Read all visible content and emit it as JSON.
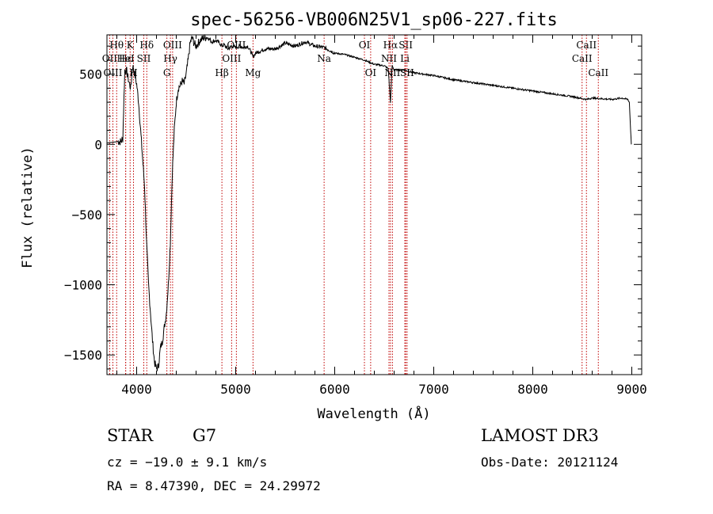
{
  "chart_data": {
    "type": "line",
    "title": "spec-56256-VB006N25V1_sp06-227.fits",
    "xlabel": "Wavelength (Å)",
    "ylabel": "Flux (relative)",
    "xlim": [
      3700,
      9100
    ],
    "ylim": [
      -1640,
      780
    ],
    "xticks": [
      4000,
      5000,
      6000,
      7000,
      8000,
      9000
    ],
    "xtick_labels": [
      "4000",
      "5000",
      "6000",
      "7000",
      "8000",
      "9000"
    ],
    "yticks": [
      -1500,
      -1000,
      -500,
      0,
      500
    ],
    "ytick_labels": [
      "−1500",
      "−1000",
      "−500",
      "0",
      "500"
    ],
    "series": [
      {
        "name": "flux",
        "color": "#000000",
        "x": [
          3700,
          3760,
          3810,
          3840,
          3860,
          3880,
          3900,
          3920,
          3940,
          3960,
          3980,
          4000,
          4020,
          4040,
          4060,
          4080,
          4100,
          4120,
          4140,
          4160,
          4180,
          4200,
          4220,
          4240,
          4260,
          4280,
          4300,
          4320,
          4340,
          4360,
          4380,
          4400,
          4420,
          4440,
          4460,
          4480,
          4500,
          4520,
          4540,
          4560,
          4580,
          4600,
          4640,
          4680,
          4720,
          4760,
          4800,
          4840,
          4861,
          4880,
          4920,
          4960,
          5000,
          5040,
          5080,
          5120,
          5160,
          5175,
          5200,
          5300,
          5400,
          5500,
          5600,
          5700,
          5800,
          5890,
          5950,
          6000,
          6100,
          6200,
          6300,
          6400,
          6500,
          6540,
          6563,
          6580,
          6600,
          6700,
          6800,
          7000,
          7200,
          7400,
          7600,
          7800,
          8000,
          8200,
          8400,
          8542,
          8600,
          8800,
          8900,
          8960,
          8975,
          8985,
          8995
        ],
        "y": [
          10,
          15,
          20,
          20,
          40,
          530,
          520,
          450,
          400,
          560,
          500,
          430,
          300,
          100,
          -100,
          -300,
          -700,
          -1000,
          -1200,
          -1400,
          -1550,
          -1600,
          -1580,
          -1450,
          -1400,
          -1300,
          -1200,
          -1000,
          -700,
          -200,
          100,
          300,
          400,
          420,
          450,
          430,
          500,
          600,
          720,
          760,
          720,
          700,
          740,
          760,
          760,
          730,
          740,
          720,
          700,
          710,
          680,
          700,
          690,
          700,
          690,
          700,
          650,
          620,
          650,
          680,
          680,
          720,
          700,
          730,
          700,
          690,
          670,
          650,
          640,
          620,
          600,
          570,
          560,
          540,
          300,
          560,
          530,
          530,
          510,
          490,
          460,
          440,
          420,
          400,
          380,
          360,
          340,
          320,
          330,
          320,
          330,
          320,
          300,
          150,
          0
        ]
      }
    ],
    "spectral_lines": [
      {
        "name": "Hθ",
        "wave": 3798,
        "row": 1
      },
      {
        "name": "OII",
        "wave": 3727,
        "row": 2
      },
      {
        "name": "OIII",
        "wave": 3760,
        "row": 3
      },
      {
        "name": "Hε",
        "wave": 3889,
        "row": 2
      },
      {
        "name": "K",
        "wave": 3934,
        "row": 1
      },
      {
        "name": "H",
        "wave": 3968,
        "row": 3
      },
      {
        "name": "HeI",
        "wave": 3889,
        "row": 2
      },
      {
        "name": "SII",
        "wave": 4072,
        "row": 2
      },
      {
        "name": "Hδ",
        "wave": 4102,
        "row": 1
      },
      {
        "name": "OIII",
        "wave": 4363,
        "row": 1
      },
      {
        "name": "Hγ",
        "wave": 4341,
        "row": 2
      },
      {
        "name": "G",
        "wave": 4305,
        "row": 3
      },
      {
        "name": "Hβ",
        "wave": 4861,
        "row": 3
      },
      {
        "name": "OIII",
        "wave": 4959,
        "row": 2
      },
      {
        "name": "OIII",
        "wave": 5007,
        "row": 1
      },
      {
        "name": "Mg",
        "wave": 5175,
        "row": 3
      },
      {
        "name": "Na",
        "wave": 5893,
        "row": 2
      },
      {
        "name": "OI",
        "wave": 6300,
        "row": 1
      },
      {
        "name": "OI",
        "wave": 6363,
        "row": 3
      },
      {
        "name": "Hα",
        "wave": 6563,
        "row": 1
      },
      {
        "name": "NII",
        "wave": 6548,
        "row": 2
      },
      {
        "name": "NII",
        "wave": 6583,
        "row": 3
      },
      {
        "name": "SII",
        "wave": 6717,
        "row": 1
      },
      {
        "name": "Li",
        "wave": 6708,
        "row": 2
      },
      {
        "name": "SII",
        "wave": 6731,
        "row": 3
      },
      {
        "name": "CaII",
        "wave": 8542,
        "row": 1
      },
      {
        "name": "CaII",
        "wave": 8498,
        "row": 2
      },
      {
        "name": "CaII",
        "wave": 8662,
        "row": 3
      }
    ],
    "line_color": "#c00000"
  },
  "info": {
    "object_class": "STAR",
    "subclass": "G7",
    "survey": "LAMOST DR3",
    "redshift": "cz = −19.0 ± 9.1 km/s",
    "obs_date": "Obs-Date: 20121124",
    "coords": "RA =   8.47390, DEC =  24.29972"
  }
}
